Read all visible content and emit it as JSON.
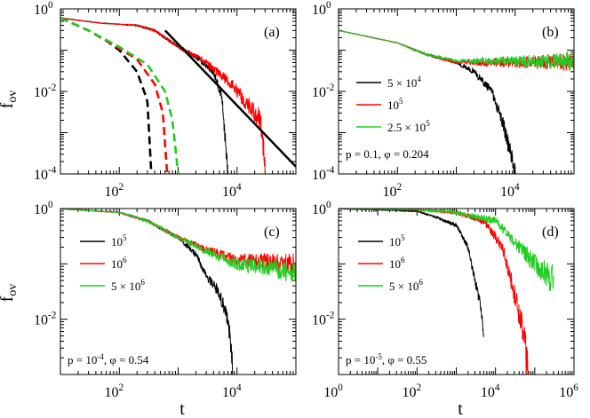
{
  "figure": {
    "ylabel_main": "f",
    "ylabel_sub": "ov",
    "xlabel": "t"
  },
  "chart_data": [
    {
      "panel": "(a)",
      "type": "line",
      "xscale": "log",
      "yscale": "log",
      "xlim": [
        10,
        100000
      ],
      "ylim": [
        0.0001,
        1
      ],
      "yticks": [
        {
          "base": "10",
          "exp": "0"
        },
        {
          "base": "10",
          "exp": "-2"
        },
        {
          "base": "10",
          "exp": "-4"
        }
      ],
      "xticks": [
        {
          "base": "10",
          "exp": "2"
        },
        {
          "base": "10",
          "exp": "4"
        }
      ],
      "series": [
        {
          "name": "solid-black",
          "color": "#000000",
          "style": "solid",
          "noisy": true,
          "points": [
            [
              10,
              0.6
            ],
            [
              50,
              0.45
            ],
            [
              200,
              0.4
            ],
            [
              400,
              0.3
            ],
            [
              1000,
              0.12
            ],
            [
              2000,
              0.07
            ],
            [
              4000,
              0.03
            ],
            [
              5500,
              0.008
            ],
            [
              7000,
              0.0001
            ]
          ]
        },
        {
          "name": "solid-red",
          "color": "#ff0000",
          "style": "solid",
          "noisy": true,
          "points": [
            [
              10,
              0.6
            ],
            [
              50,
              0.45
            ],
            [
              200,
              0.4
            ],
            [
              400,
              0.3
            ],
            [
              1000,
              0.12
            ],
            [
              3000,
              0.05
            ],
            [
              8000,
              0.015
            ],
            [
              15000,
              0.005
            ],
            [
              25000,
              0.002
            ],
            [
              30000,
              0.0002
            ]
          ]
        },
        {
          "name": "dashed-black",
          "color": "#000000",
          "style": "dashed",
          "noisy": false,
          "points": [
            [
              10,
              0.6
            ],
            [
              30,
              0.3
            ],
            [
              60,
              0.17
            ],
            [
              100,
              0.1
            ],
            [
              200,
              0.03
            ],
            [
              300,
              0.006
            ],
            [
              350,
              0.0001
            ]
          ]
        },
        {
          "name": "dashed-red",
          "color": "#ff0000",
          "style": "dashed",
          "noisy": false,
          "points": [
            [
              10,
              0.6
            ],
            [
              30,
              0.3
            ],
            [
              100,
              0.11
            ],
            [
              200,
              0.06
            ],
            [
              400,
              0.015
            ],
            [
              550,
              0.003
            ],
            [
              650,
              0.0001
            ]
          ]
        },
        {
          "name": "dashed-green",
          "color": "#22cc22",
          "style": "dashed",
          "noisy": false,
          "points": [
            [
              10,
              0.6
            ],
            [
              30,
              0.3
            ],
            [
              100,
              0.12
            ],
            [
              300,
              0.045
            ],
            [
              600,
              0.01
            ],
            [
              800,
              0.002
            ],
            [
              1000,
              0.0001
            ]
          ]
        },
        {
          "name": "power-law-fit",
          "color": "#000000",
          "style": "fit",
          "noisy": false,
          "points": [
            [
              600,
              0.3
            ],
            [
              100000,
              0.00015
            ]
          ]
        }
      ],
      "legend": [],
      "annotation": ""
    },
    {
      "panel": "(b)",
      "type": "line",
      "xscale": "log",
      "yscale": "log",
      "xlim": [
        10,
        100000
      ],
      "ylim": [
        0.0001,
        1
      ],
      "yticks": [
        {
          "base": "10",
          "exp": "0"
        },
        {
          "base": "10",
          "exp": "-2"
        },
        {
          "base": "10",
          "exp": "-4"
        }
      ],
      "xticks": [
        {
          "base": "10",
          "exp": "2"
        },
        {
          "base": "10",
          "exp": "4"
        }
      ],
      "series": [
        {
          "name": "5 × 10^4",
          "color": "#000000",
          "style": "solid",
          "noisy": true,
          "points": [
            [
              10,
              0.3
            ],
            [
              100,
              0.15
            ],
            [
              300,
              0.08
            ],
            [
              1000,
              0.05
            ],
            [
              2000,
              0.03
            ],
            [
              4000,
              0.01
            ],
            [
              6000,
              0.002
            ],
            [
              8000,
              0.0004
            ],
            [
              10000,
              0.0001
            ]
          ]
        },
        {
          "name": "10^5",
          "color": "#ff0000",
          "style": "solid",
          "noisy": true,
          "points": [
            [
              10,
              0.3
            ],
            [
              100,
              0.15
            ],
            [
              300,
              0.08
            ],
            [
              1000,
              0.05
            ],
            [
              5000,
              0.05
            ],
            [
              100000,
              0.05
            ]
          ]
        },
        {
          "name": "2.5 × 10^5",
          "color": "#22cc22",
          "style": "solid",
          "noisy": true,
          "points": [
            [
              10,
              0.3
            ],
            [
              100,
              0.15
            ],
            [
              300,
              0.08
            ],
            [
              1000,
              0.055
            ],
            [
              5000,
              0.055
            ],
            [
              100000,
              0.055
            ]
          ]
        }
      ],
      "legend": [
        {
          "color": "#000000",
          "base": "5 × 10",
          "exp": "4"
        },
        {
          "color": "#ff0000",
          "base": "10",
          "exp": "5"
        },
        {
          "color": "#22cc22",
          "base": "2.5 × 10",
          "exp": "5"
        }
      ],
      "annotation": "p = 0.1, φ = 0.204"
    },
    {
      "panel": "(c)",
      "type": "line",
      "xscale": "log",
      "yscale": "log",
      "xlim": [
        10,
        100000
      ],
      "ylim": [
        0.001,
        1
      ],
      "yticks": [
        {
          "base": "10",
          "exp": "0"
        },
        {
          "base": "10",
          "exp": "-2"
        }
      ],
      "xticks": [
        {
          "base": "10",
          "exp": "2"
        },
        {
          "base": "10",
          "exp": "4"
        }
      ],
      "series": [
        {
          "name": "10^5",
          "color": "#000000",
          "style": "solid",
          "noisy": true,
          "points": [
            [
              10,
              1.0
            ],
            [
              100,
              0.85
            ],
            [
              300,
              0.6
            ],
            [
              1000,
              0.3
            ],
            [
              2000,
              0.15
            ],
            [
              3000,
              0.06
            ],
            [
              5000,
              0.03
            ],
            [
              7000,
              0.01
            ],
            [
              8000,
              0.003
            ],
            [
              8500,
              0.0011
            ]
          ]
        },
        {
          "name": "10^6",
          "color": "#ff0000",
          "style": "solid",
          "noisy": true,
          "points": [
            [
              10,
              1.0
            ],
            [
              100,
              0.85
            ],
            [
              300,
              0.6
            ],
            [
              1000,
              0.3
            ],
            [
              3000,
              0.18
            ],
            [
              10000,
              0.12
            ],
            [
              100000,
              0.1
            ]
          ]
        },
        {
          "name": "5 × 10^6",
          "color": "#22cc22",
          "style": "solid",
          "noisy": true,
          "points": [
            [
              10,
              1.0
            ],
            [
              100,
              0.85
            ],
            [
              300,
              0.6
            ],
            [
              1000,
              0.3
            ],
            [
              3000,
              0.17
            ],
            [
              10000,
              0.1
            ],
            [
              100000,
              0.07
            ]
          ]
        }
      ],
      "legend": [
        {
          "color": "#000000",
          "base": "10",
          "exp": "5"
        },
        {
          "color": "#ff0000",
          "base": "10",
          "exp": "6"
        },
        {
          "color": "#22cc22",
          "base": "5 × 10",
          "exp": "6"
        }
      ],
      "annotation": "p = 10^-4, φ = 0.54"
    },
    {
      "panel": "(d)",
      "type": "line",
      "xscale": "log",
      "yscale": "log",
      "xlim": [
        1,
        1000000
      ],
      "ylim": [
        0.001,
        1
      ],
      "yticks": [
        {
          "base": "10",
          "exp": "0"
        },
        {
          "base": "10",
          "exp": "-2"
        }
      ],
      "xticks": [
        {
          "base": "10",
          "exp": "0"
        },
        {
          "base": "10",
          "exp": "2"
        },
        {
          "base": "10",
          "exp": "4"
        },
        {
          "base": "10",
          "exp": "6"
        }
      ],
      "series": [
        {
          "name": "10^5",
          "color": "#000000",
          "style": "solid",
          "noisy": true,
          "points": [
            [
              1,
              1.0
            ],
            [
              100,
              0.9
            ],
            [
              300,
              0.7
            ],
            [
              1000,
              0.5
            ],
            [
              2000,
              0.2
            ],
            [
              3000,
              0.05
            ],
            [
              4000,
              0.02
            ],
            [
              5000,
              0.005
            ]
          ]
        },
        {
          "name": "10^6",
          "color": "#ff0000",
          "style": "solid",
          "noisy": true,
          "points": [
            [
              1,
              1.0
            ],
            [
              100,
              0.95
            ],
            [
              1000,
              0.85
            ],
            [
              5000,
              0.6
            ],
            [
              15000,
              0.2
            ],
            [
              30000,
              0.03
            ],
            [
              50000,
              0.006
            ],
            [
              70000,
              0.001
            ]
          ]
        },
        {
          "name": "5 × 10^6",
          "color": "#22cc22",
          "style": "solid",
          "noisy": true,
          "points": [
            [
              1,
              1.0
            ],
            [
              100,
              0.95
            ],
            [
              1000,
              0.85
            ],
            [
              10000,
              0.6
            ],
            [
              30000,
              0.25
            ],
            [
              100000,
              0.1
            ],
            [
              300000,
              0.05
            ]
          ]
        }
      ],
      "legend": [
        {
          "color": "#000000",
          "base": "10",
          "exp": "5"
        },
        {
          "color": "#ff0000",
          "base": "10",
          "exp": "6"
        },
        {
          "color": "#22cc22",
          "base": "5 × 10",
          "exp": "6"
        }
      ],
      "annotation": "p = 10^-5, φ = 0.55"
    }
  ]
}
